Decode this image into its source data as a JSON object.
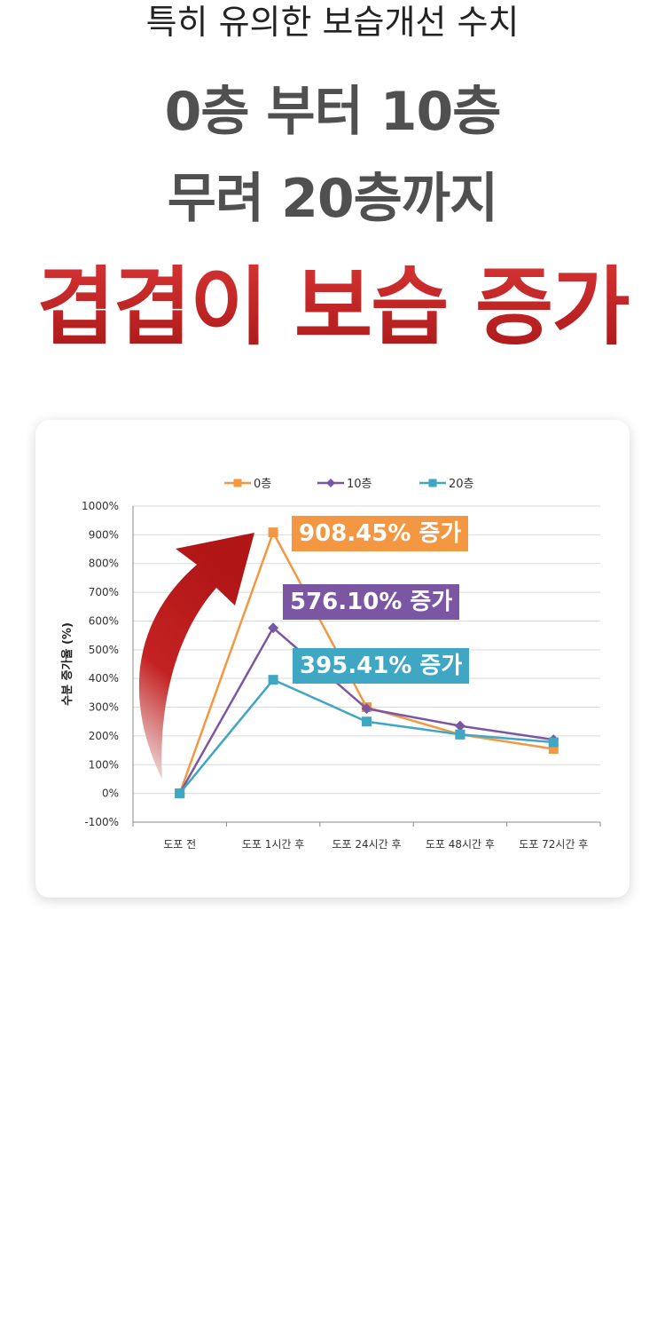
{
  "header": {
    "subtitle": "특히 유의한 보습개선 수치",
    "line1": "0층 부터 10층",
    "line2": "무려 20층까지",
    "emphasis": "겹겹이 보습 증가"
  },
  "callouts": [
    "908.45% 증가",
    "576.10% 증가",
    "395.41% 증가"
  ],
  "chart_data": {
    "type": "line",
    "categories": [
      "도포 전",
      "도포 1시간 후",
      "도포 24시간 후",
      "도포 48시간 후",
      "도포 72시간 후"
    ],
    "series": [
      {
        "name": "0층",
        "values": [
          0,
          908.45,
          300,
          205,
          155
        ],
        "color": "#f39742",
        "marker": "square"
      },
      {
        "name": "10층",
        "values": [
          0,
          576.1,
          295,
          235,
          187
        ],
        "color": "#7b57a3",
        "marker": "diamond"
      },
      {
        "name": "20층",
        "values": [
          0,
          395.41,
          250,
          205,
          178
        ],
        "color": "#3fa6c4",
        "marker": "square"
      }
    ],
    "ylabel": "수분 증가율 (%)",
    "ylim": [
      -100,
      1000
    ],
    "yticks": [
      -100,
      0,
      100,
      200,
      300,
      400,
      500,
      600,
      700,
      800,
      900,
      1000
    ],
    "ytick_labels": [
      "-100%",
      "0%",
      "100%",
      "200%",
      "300%",
      "400%",
      "500%",
      "600%",
      "700%",
      "800%",
      "900%",
      "1000%"
    ],
    "grid": true,
    "legend": "top",
    "arrow_color": "#c42222"
  }
}
